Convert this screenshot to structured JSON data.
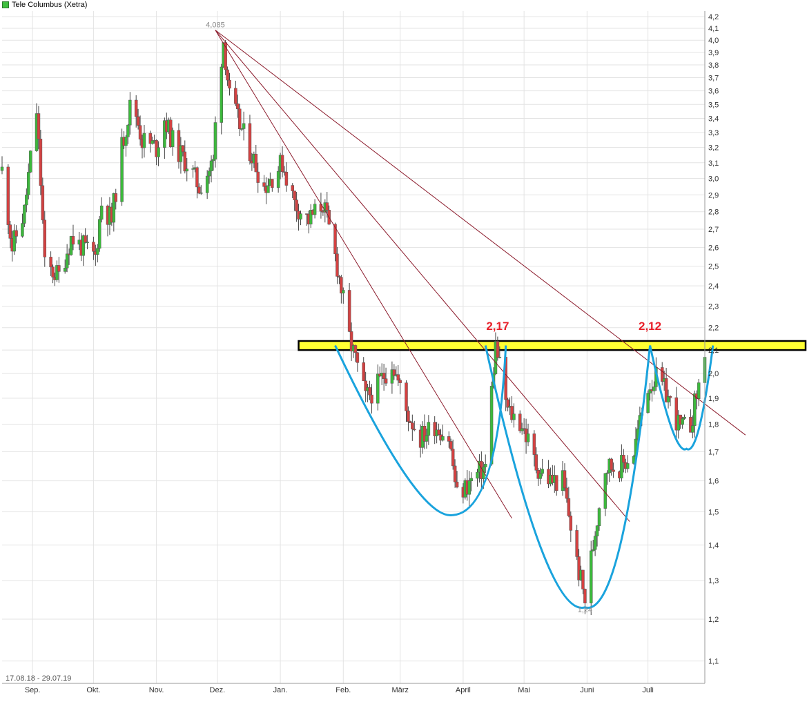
{
  "legend": {
    "label": "Tele Columbus (Xetra)",
    "swatch_color": "#3fbf3f"
  },
  "date_range": "17.08.18 - 29.07.19",
  "annotations": {
    "high_label": "4,085",
    "low_label": "1,24",
    "resistance_1": "2,17",
    "resistance_2": "2,12"
  },
  "colors": {
    "up": "#3cb93c",
    "down": "#d34141",
    "trend_line": "#8b1a2b",
    "curve": "#1aa3dd",
    "band_fill": "#ffff33",
    "annotation_red": "#e8202a",
    "grid": "#e3e3e3"
  },
  "chart_data": {
    "type": "candlestick",
    "title": "Tele Columbus (Xetra)",
    "xlabel": "",
    "ylabel": "",
    "y_scale": "log",
    "ylim": [
      1.05,
      4.25
    ],
    "y_ticks": [
      "4,2",
      "4,1",
      "4,0",
      "3,9",
      "3,8",
      "3,7",
      "3,6",
      "3,5",
      "3,4",
      "3,3",
      "3,2",
      "3,1",
      "3,0",
      "2,9",
      "2,8",
      "2,7",
      "2,6",
      "2,5",
      "2,4",
      "2,3",
      "2,2",
      "2,1",
      "2,0",
      "1,9",
      "1,8",
      "1,7",
      "1,6",
      "1,5",
      "1,4",
      "1,3",
      "1,2",
      "1,1"
    ],
    "y_tick_values": [
      4.2,
      4.1,
      4.0,
      3.9,
      3.8,
      3.7,
      3.6,
      3.5,
      3.4,
      3.3,
      3.2,
      3.1,
      3.0,
      2.9,
      2.8,
      2.7,
      2.6,
      2.5,
      2.4,
      2.3,
      2.2,
      2.1,
      2.0,
      1.9,
      1.8,
      1.7,
      1.6,
      1.5,
      1.4,
      1.3,
      1.2,
      1.1
    ],
    "x_range": [
      "2018-08-17",
      "2019-07-29"
    ],
    "x_ticks": [
      {
        "label": "Sep.",
        "date": "2018-09-01"
      },
      {
        "label": "Okt.",
        "date": "2018-10-01"
      },
      {
        "label": "Nov.",
        "date": "2018-11-01"
      },
      {
        "label": "Dez.",
        "date": "2018-12-01"
      },
      {
        "label": "Jan.",
        "date": "2019-01-01"
      },
      {
        "label": "Feb.",
        "date": "2019-02-01"
      },
      {
        "label": "März",
        "date": "2019-03-01"
      },
      {
        "label": "April",
        "date": "2019-04-01"
      },
      {
        "label": "Mai",
        "date": "2019-05-01"
      },
      {
        "label": "Juni",
        "date": "2019-06-01"
      },
      {
        "label": "Juli",
        "date": "2019-07-01"
      }
    ],
    "price_path": [
      [
        "2018-08-17",
        3.05
      ],
      [
        "2018-08-22",
        2.6
      ],
      [
        "2018-08-28",
        2.8
      ],
      [
        "2018-09-03",
        3.45
      ],
      [
        "2018-09-07",
        2.5
      ],
      [
        "2018-09-14",
        2.45
      ],
      [
        "2018-09-20",
        2.65
      ],
      [
        "2018-09-26",
        2.6
      ],
      [
        "2018-10-02",
        2.55
      ],
      [
        "2018-10-05",
        2.85
      ],
      [
        "2018-10-10",
        2.75
      ],
      [
        "2018-10-15",
        3.2
      ],
      [
        "2018-10-20",
        3.55
      ],
      [
        "2018-10-25",
        3.25
      ],
      [
        "2018-11-01",
        3.2
      ],
      [
        "2018-11-05",
        3.4
      ],
      [
        "2018-11-10",
        3.2
      ],
      [
        "2018-11-16",
        3.1
      ],
      [
        "2018-11-22",
        2.95
      ],
      [
        "2018-11-29",
        3.1
      ],
      [
        "2018-12-01",
        3.6
      ],
      [
        "2018-12-04",
        4.0
      ],
      [
        "2018-12-07",
        3.55
      ],
      [
        "2018-12-12",
        3.35
      ],
      [
        "2018-12-18",
        3.15
      ],
      [
        "2018-12-24",
        2.95
      ],
      [
        "2019-01-02",
        3.1
      ],
      [
        "2019-01-08",
        2.85
      ],
      [
        "2019-01-15",
        2.75
      ],
      [
        "2019-01-22",
        2.85
      ],
      [
        "2019-01-29",
        2.5
      ],
      [
        "2019-02-04",
        2.15
      ],
      [
        "2019-02-12",
        1.9
      ],
      [
        "2019-02-18",
        1.95
      ],
      [
        "2019-02-25",
        2.05
      ],
      [
        "2019-03-04",
        1.85
      ],
      [
        "2019-03-11",
        1.75
      ],
      [
        "2019-03-18",
        1.8
      ],
      [
        "2019-03-25",
        1.75
      ],
      [
        "2019-03-29",
        1.55
      ],
      [
        "2019-04-05",
        1.6
      ],
      [
        "2019-04-12",
        1.65
      ],
      [
        "2019-04-17",
        2.12
      ],
      [
        "2019-04-23",
        1.85
      ],
      [
        "2019-04-30",
        1.8
      ],
      [
        "2019-05-07",
        1.65
      ],
      [
        "2019-05-14",
        1.6
      ],
      [
        "2019-05-20",
        1.6
      ],
      [
        "2019-05-27",
        1.35
      ],
      [
        "2019-05-31",
        1.25
      ],
      [
        "2019-06-04",
        1.4
      ],
      [
        "2019-06-10",
        1.65
      ],
      [
        "2019-06-18",
        1.65
      ],
      [
        "2019-06-24",
        1.7
      ],
      [
        "2019-07-01",
        1.95
      ],
      [
        "2019-07-05",
        1.98
      ],
      [
        "2019-07-10",
        1.92
      ],
      [
        "2019-07-17",
        1.78
      ],
      [
        "2019-07-22",
        1.8
      ],
      [
        "2019-07-26",
        1.95
      ],
      [
        "2019-07-29",
        2.1
      ]
    ],
    "highlight_band": [
      2.1,
      2.14
    ],
    "high": {
      "date": "2018-11-30",
      "value": 4.085
    },
    "low": {
      "date": "2019-05-31",
      "value": 1.24
    }
  }
}
